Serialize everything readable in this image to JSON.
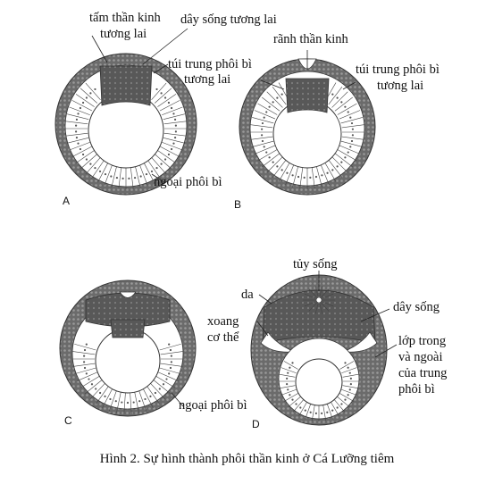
{
  "figure": {
    "caption": "Hình 2.  Sự hình thành phôi thần kinh ở  Cá Lưỡng tiêm",
    "colors": {
      "ectoderm": "#6b6b6b",
      "dark_tissue": "#5a5a5a",
      "cells": "#ffffff",
      "stroke": "#333333"
    },
    "panels": {
      "A": {
        "letter": "A",
        "labels": {
          "neural_plate_l1": "tấm thần kinh",
          "neural_plate_l2": "tương lai",
          "notochord": "dây sống tương lai",
          "mesoderm_pouch_l1": "túi trung phôi bì",
          "mesoderm_pouch_l2": "tương lai",
          "ectoderm": "ngoại phôi bì"
        }
      },
      "B": {
        "letter": "B",
        "labels": {
          "neural_groove": "rãnh thần kinh",
          "mesoderm_pouch_l1": "túi trung phôi bì",
          "mesoderm_pouch_l2": "tương lai"
        }
      },
      "C": {
        "letter": "C",
        "labels": {
          "ectoderm": "ngoại phôi bì"
        }
      },
      "D": {
        "letter": "D",
        "labels": {
          "spinal_cord": "tủy sống",
          "skin": "da",
          "body_cavity_l1": "xoang",
          "body_cavity_l2": "cơ thể",
          "notochord": "dây sống",
          "mesoderm_l1": "lớp trong",
          "mesoderm_l2": "và ngoài",
          "mesoderm_l3": "của trung",
          "mesoderm_l4": "phôi bì"
        }
      }
    }
  }
}
